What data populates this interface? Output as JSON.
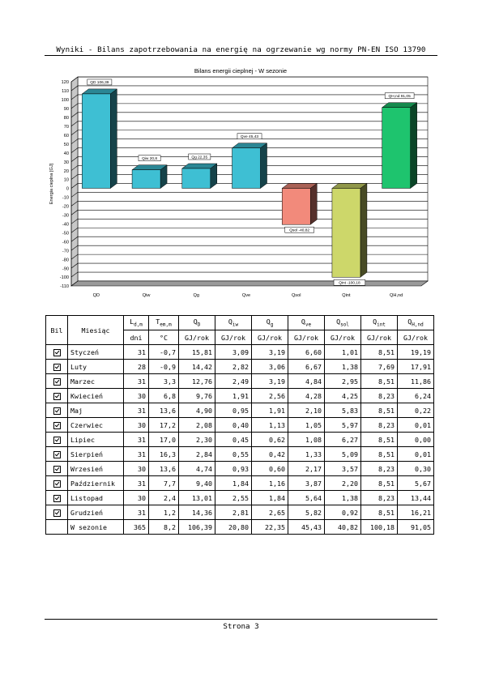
{
  "report": {
    "title": "Wyniki - Bilans zapotrzebowania na energię na ogrzewanie wg normy PN-EN ISO 13790",
    "page_label": "Strona 3"
  },
  "chart_data": {
    "type": "bar",
    "title": "Bilans energii cieplnej - W sezonie",
    "ylabel": "Energia cieplna [GJ]",
    "ylim": [
      -110,
      120
    ],
    "ytick_step": 10,
    "grid": true,
    "categories": [
      "QD",
      "Qiw",
      "Qg",
      "Qve",
      "Qsol",
      "Qint",
      "QH,nd"
    ],
    "values": [
      106.39,
      20.8,
      22.35,
      45.43,
      -40.82,
      -100.18,
      91.05
    ],
    "data_labels": [
      "QD 106,39",
      "Qiw 20,8",
      "Qg 22,35",
      "Qve 45,43",
      "Qsol -40,82",
      "Qint -100,18",
      "QH,nd 91,05"
    ],
    "colors": [
      "#3ebfd3",
      "#3ebfd3",
      "#3ebfd3",
      "#3ebfd3",
      "#f28a7b",
      "#cdd76a",
      "#1ec46e"
    ]
  },
  "table": {
    "headers": {
      "bil": "Bil",
      "month": "Miesiąc",
      "ld_main": "L",
      "ld_sub": "d,m",
      "te_main": "T",
      "te_sub": "em,m",
      "qd_main": "Q",
      "qd_sub": "D",
      "qiw_main": "Q",
      "qiw_sub": "iw",
      "qg_main": "Q",
      "qg_sub": "g",
      "qve_main": "Q",
      "qve_sub": "ve",
      "qsol_main": "Q",
      "qsol_sub": "sol",
      "qint_main": "Q",
      "qint_sub": "int",
      "qh_main": "Q",
      "qh_sub": "H,nd"
    },
    "units": [
      "dni",
      "°C",
      "GJ/rok",
      "GJ/rok",
      "GJ/rok",
      "GJ/rok",
      "GJ/rok",
      "GJ/rok",
      "GJ/rok"
    ],
    "rows": [
      {
        "month": "Styczeń",
        "days": "31",
        "temp": "-0,7",
        "qd": "15,81",
        "qiw": "3,09",
        "qg": "3,19",
        "qve": "6,60",
        "qsol": "1,01",
        "qint": "8,51",
        "qh": "19,19"
      },
      {
        "month": "Luty",
        "days": "28",
        "temp": "-0,9",
        "qd": "14,42",
        "qiw": "2,82",
        "qg": "3,06",
        "qve": "6,67",
        "qsol": "1,38",
        "qint": "7,69",
        "qh": "17,91"
      },
      {
        "month": "Marzec",
        "days": "31",
        "temp": "3,3",
        "qd": "12,76",
        "qiw": "2,49",
        "qg": "3,19",
        "qve": "4,84",
        "qsol": "2,95",
        "qint": "8,51",
        "qh": "11,86"
      },
      {
        "month": "Kwiecień",
        "days": "30",
        "temp": "6,8",
        "qd": "9,76",
        "qiw": "1,91",
        "qg": "2,56",
        "qve": "4,28",
        "qsol": "4,25",
        "qint": "8,23",
        "qh": "6,24"
      },
      {
        "month": "Maj",
        "days": "31",
        "temp": "13,6",
        "qd": "4,90",
        "qiw": "0,95",
        "qg": "1,91",
        "qve": "2,10",
        "qsol": "5,83",
        "qint": "8,51",
        "qh": "0,22"
      },
      {
        "month": "Czerwiec",
        "days": "30",
        "temp": "17,2",
        "qd": "2,08",
        "qiw": "0,40",
        "qg": "1,13",
        "qve": "1,05",
        "qsol": "5,97",
        "qint": "8,23",
        "qh": "0,01"
      },
      {
        "month": "Lipiec",
        "days": "31",
        "temp": "17,0",
        "qd": "2,30",
        "qiw": "0,45",
        "qg": "0,62",
        "qve": "1,08",
        "qsol": "6,27",
        "qint": "8,51",
        "qh": "0,00"
      },
      {
        "month": "Sierpień",
        "days": "31",
        "temp": "16,3",
        "qd": "2,84",
        "qiw": "0,55",
        "qg": "0,42",
        "qve": "1,33",
        "qsol": "5,09",
        "qint": "8,51",
        "qh": "0,01"
      },
      {
        "month": "Wrzesień",
        "days": "30",
        "temp": "13,6",
        "qd": "4,74",
        "qiw": "0,93",
        "qg": "0,60",
        "qve": "2,17",
        "qsol": "3,57",
        "qint": "8,23",
        "qh": "0,30"
      },
      {
        "month": "Październik",
        "days": "31",
        "temp": "7,7",
        "qd": "9,40",
        "qiw": "1,84",
        "qg": "1,16",
        "qve": "3,87",
        "qsol": "2,20",
        "qint": "8,51",
        "qh": "5,67"
      },
      {
        "month": "Listopad",
        "days": "30",
        "temp": "2,4",
        "qd": "13,01",
        "qiw": "2,55",
        "qg": "1,84",
        "qve": "5,64",
        "qsol": "1,38",
        "qint": "8,23",
        "qh": "13,44"
      },
      {
        "month": "Grudzień",
        "days": "31",
        "temp": "1,2",
        "qd": "14,36",
        "qiw": "2,81",
        "qg": "2,65",
        "qve": "5,82",
        "qsol": "0,92",
        "qint": "8,51",
        "qh": "16,21"
      }
    ],
    "total": {
      "month": "W sezonie",
      "days": "365",
      "temp": "8,2",
      "qd": "106,39",
      "qiw": "20,80",
      "qg": "22,35",
      "qve": "45,43",
      "qsol": "40,82",
      "qint": "100,18",
      "qh": "91,05"
    }
  }
}
